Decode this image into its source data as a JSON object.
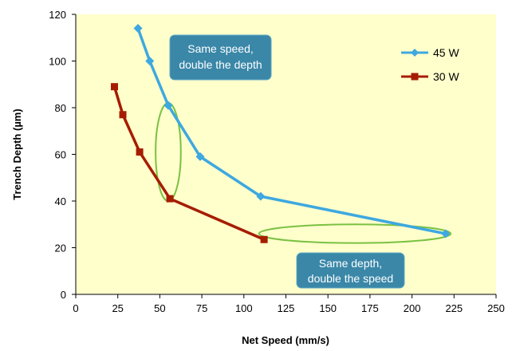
{
  "chart_data": {
    "type": "line",
    "title": "",
    "xlabel": "Net Speed (mm/s)",
    "ylabel": "Trench Depth (µm)",
    "xlim": [
      0,
      250
    ],
    "ylim": [
      0,
      120
    ],
    "x_ticks": [
      0,
      25,
      50,
      75,
      100,
      125,
      150,
      175,
      200,
      225,
      250
    ],
    "y_ticks": [
      0,
      20,
      40,
      60,
      80,
      100,
      120
    ],
    "grid": false,
    "legend_position": "top-right",
    "plot_background": "#ffffcc",
    "series": [
      {
        "name": "45 W",
        "color": "#3ea8e0",
        "marker": "diamond",
        "points": [
          [
            37,
            114
          ],
          [
            44,
            100
          ],
          [
            55,
            81
          ],
          [
            74,
            59
          ],
          [
            110,
            42
          ],
          [
            220,
            26
          ]
        ]
      },
      {
        "name": "30 W",
        "color": "#a61c00",
        "marker": "square",
        "points": [
          [
            23,
            89
          ],
          [
            28,
            77
          ],
          [
            38,
            61
          ],
          [
            56,
            41
          ],
          [
            112,
            23.5
          ]
        ]
      }
    ],
    "annotations": [
      {
        "id": "speed",
        "lines": [
          "Same speed,",
          "double the depth"
        ],
        "box_color": "#3a87a8",
        "ellipse": {
          "cx": 55,
          "cy": 61,
          "rx": 7.5,
          "ry": 21,
          "color": "#7ac142"
        }
      },
      {
        "id": "depth",
        "lines": [
          "Same depth,",
          "double the speed"
        ],
        "box_color": "#3a87a8",
        "ellipse": {
          "cx": 166,
          "cy": 26,
          "rx": 57,
          "ry": 4,
          "color": "#7ac142"
        }
      }
    ]
  }
}
